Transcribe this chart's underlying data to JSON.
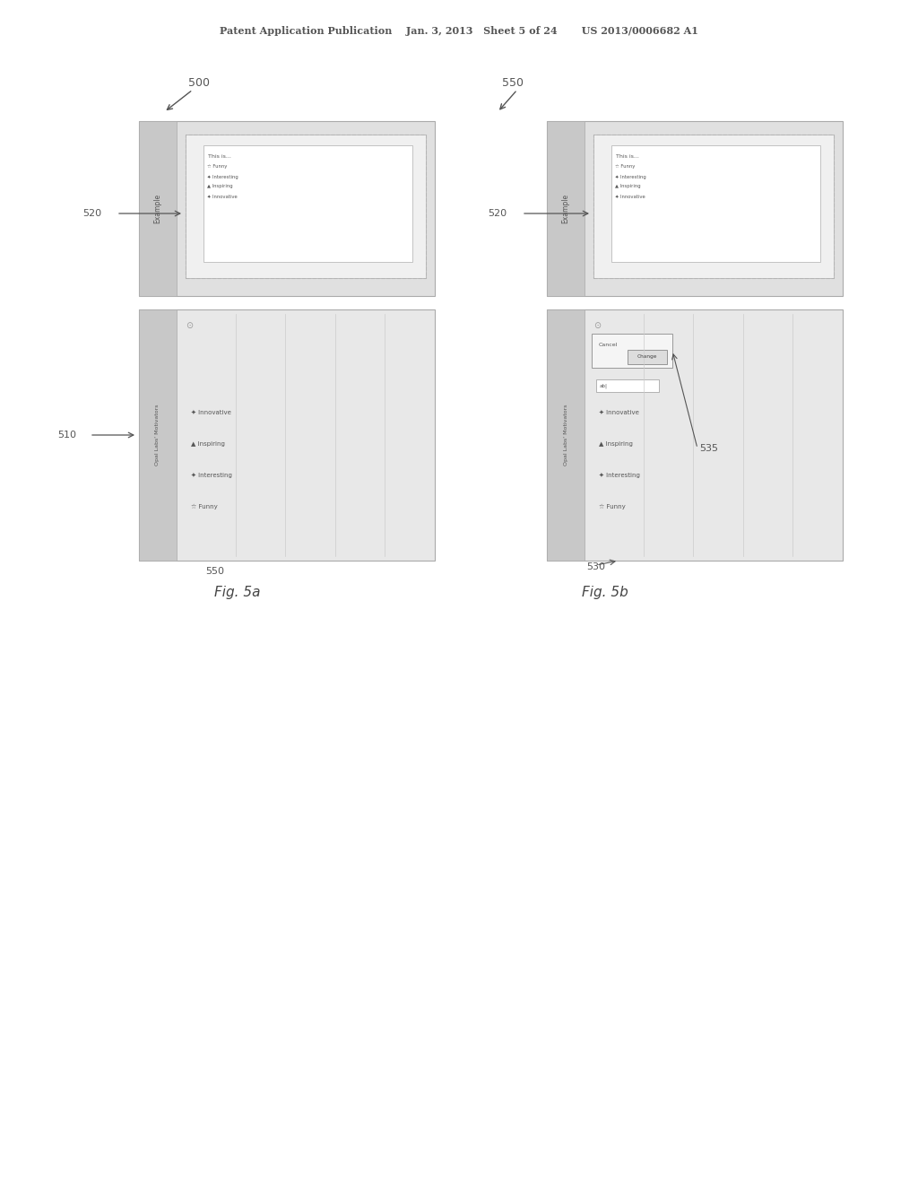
{
  "bg_color": "#ffffff",
  "header_text": "Patent Application Publication    Jan. 3, 2013   Sheet 5 of 24       US 2013/0006682 A1",
  "fig5a_label": "Fig. 5a",
  "fig5b_label": "Fig. 5b",
  "label_500": "500",
  "label_510": "510",
  "label_520": "520",
  "label_550_a": "550",
  "label_550_b": "550",
  "label_530": "530",
  "label_535": "535",
  "label_520b": "520",
  "items_a": [
    [
      "Funny",
      "☆"
    ],
    [
      "Interesting",
      "✦"
    ],
    [
      "Inspiring",
      "▲"
    ],
    [
      "Innovative",
      "✦"
    ]
  ],
  "items_b": [
    [
      "Funny",
      "☆"
    ],
    [
      "Interesting",
      "✦"
    ],
    [
      "Inspiring",
      "▲"
    ],
    [
      "Innovative",
      "✦"
    ]
  ],
  "panel_bg": "#e8e8e8",
  "inner_bg": "#f5f5f5",
  "box_bg": "#ffffff",
  "darker_bg": "#d8d8d8",
  "medium_bg": "#ececec"
}
